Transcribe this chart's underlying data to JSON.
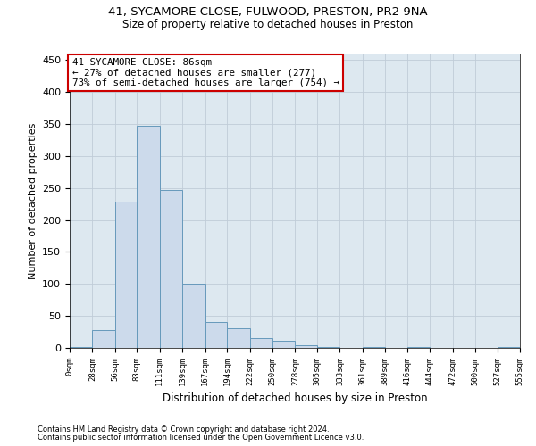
{
  "title_line1": "41, SYCAMORE CLOSE, FULWOOD, PRESTON, PR2 9NA",
  "title_line2": "Size of property relative to detached houses in Preston",
  "xlabel": "Distribution of detached houses by size in Preston",
  "ylabel": "Number of detached properties",
  "footnote1": "Contains HM Land Registry data © Crown copyright and database right 2024.",
  "footnote2": "Contains public sector information licensed under the Open Government Licence v3.0.",
  "annotation_line1": "41 SYCAMORE CLOSE: 86sqm",
  "annotation_line2": "← 27% of detached houses are smaller (277)",
  "annotation_line3": "73% of semi-detached houses are larger (754) →",
  "bar_color": "#ccdaeb",
  "bar_edge_color": "#6699bb",
  "bins": [
    0,
    28,
    56,
    83,
    111,
    139,
    167,
    194,
    222,
    250,
    278,
    305,
    333,
    361,
    389,
    416,
    444,
    472,
    500,
    527,
    555
  ],
  "bin_labels": [
    "0sqm",
    "28sqm",
    "56sqm",
    "83sqm",
    "111sqm",
    "139sqm",
    "167sqm",
    "194sqm",
    "222sqm",
    "250sqm",
    "278sqm",
    "305sqm",
    "333sqm",
    "361sqm",
    "389sqm",
    "416sqm",
    "444sqm",
    "472sqm",
    "500sqm",
    "527sqm",
    "555sqm"
  ],
  "values": [
    2,
    28,
    228,
    347,
    247,
    100,
    41,
    30,
    15,
    11,
    4,
    2,
    0,
    2,
    0,
    2,
    0,
    0,
    0,
    2
  ],
  "ylim": [
    0,
    460
  ],
  "yticks": [
    0,
    50,
    100,
    150,
    200,
    250,
    300,
    350,
    400,
    450
  ],
  "background_color": "#ffffff",
  "grid_color": "#c0ccd8",
  "ax_bg_color": "#dde8f0",
  "annotation_box_color": "#ffffff",
  "annotation_box_edge": "#cc0000"
}
